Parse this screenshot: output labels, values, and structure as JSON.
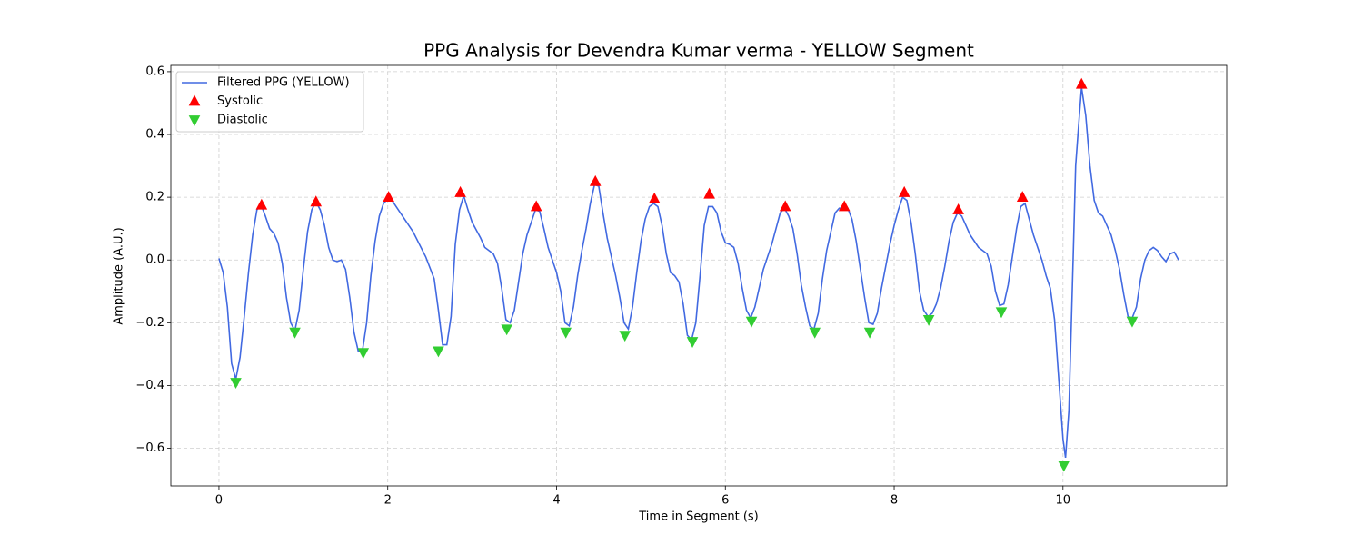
{
  "chart_data": {
    "type": "line",
    "title": "PPG Analysis for Devendra Kumar verma - YELLOW Segment",
    "x_label": "Time in Segment (s)",
    "y_label": "Amplitude (A.U.)",
    "xlim": [
      -0.57,
      11.94
    ],
    "ylim": [
      -0.72,
      0.62
    ],
    "xticks": [
      0,
      2,
      4,
      6,
      8,
      10
    ],
    "yticks": [
      {
        "value": -0.6,
        "label": "−0.6"
      },
      {
        "value": -0.4,
        "label": "−0.4"
      },
      {
        "value": -0.2,
        "label": "−0.2"
      },
      {
        "value": 0,
        "label": "0.0"
      },
      0.2,
      0.4,
      0.6
    ],
    "grid": true,
    "legend": "upper left",
    "series": [
      {
        "name": "Filtered PPG (YELLOW)",
        "type": "line",
        "color": "#4169e1",
        "x": [
          0,
          0.05,
          0.1,
          0.15,
          0.2,
          0.25,
          0.3,
          0.35,
          0.4,
          0.45,
          0.5,
          0.55,
          0.6,
          0.65,
          0.7,
          0.75,
          0.8,
          0.85,
          0.9,
          0.95,
          1.0,
          1.05,
          1.1,
          1.15,
          1.2,
          1.25,
          1.3,
          1.35,
          1.4,
          1.45,
          1.5,
          1.55,
          1.6,
          1.65,
          1.7,
          1.75,
          1.8,
          1.85,
          1.9,
          1.95,
          2.0,
          2.05,
          2.15,
          2.3,
          2.45,
          2.55,
          2.6,
          2.65,
          2.7,
          2.75,
          2.8,
          2.85,
          2.9,
          2.95,
          3.0,
          3.1,
          3.15,
          3.2,
          3.25,
          3.3,
          3.35,
          3.4,
          3.45,
          3.5,
          3.55,
          3.6,
          3.65,
          3.7,
          3.75,
          3.8,
          3.85,
          3.9,
          3.95,
          4.0,
          4.05,
          4.1,
          4.15,
          4.2,
          4.25,
          4.3,
          4.35,
          4.4,
          4.45,
          4.5,
          4.55,
          4.6,
          4.65,
          4.7,
          4.75,
          4.8,
          4.85,
          4.9,
          4.95,
          5.0,
          5.05,
          5.1,
          5.15,
          5.2,
          5.25,
          5.3,
          5.35,
          5.4,
          5.45,
          5.5,
          5.55,
          5.6,
          5.65,
          5.7,
          5.75,
          5.8,
          5.85,
          5.9,
          5.95,
          6.0,
          6.05,
          6.1,
          6.15,
          6.2,
          6.25,
          6.3,
          6.35,
          6.4,
          6.45,
          6.5,
          6.55,
          6.6,
          6.65,
          6.7,
          6.75,
          6.8,
          6.85,
          6.9,
          6.95,
          7.0,
          7.05,
          7.1,
          7.15,
          7.2,
          7.25,
          7.3,
          7.35,
          7.45,
          7.5,
          7.55,
          7.6,
          7.65,
          7.7,
          7.75,
          7.8,
          7.85,
          7.9,
          7.95,
          8.0,
          8.05,
          8.1,
          8.15,
          8.2,
          8.25,
          8.3,
          8.35,
          8.4,
          8.45,
          8.5,
          8.55,
          8.6,
          8.65,
          8.7,
          8.75,
          8.8,
          8.85,
          8.9,
          8.95,
          9.0,
          9.05,
          9.1,
          9.15,
          9.2,
          9.25,
          9.3,
          9.35,
          9.4,
          9.45,
          9.5,
          9.55,
          9.6,
          9.65,
          9.7,
          9.75,
          9.8,
          9.85,
          9.9,
          9.95,
          10.0,
          10.03,
          10.07,
          10.12,
          10.15,
          10.18,
          10.22,
          10.27,
          10.32,
          10.37,
          10.42,
          10.47,
          10.52,
          10.57,
          10.62,
          10.67,
          10.72,
          10.77,
          10.82,
          10.87,
          10.92,
          10.97,
          11.02,
          11.07,
          11.12,
          11.17,
          11.22,
          11.27,
          11.32,
          11.37
        ],
        "values": [
          0.005,
          -0.04,
          -0.15,
          -0.33,
          -0.38,
          -0.31,
          -0.18,
          -0.04,
          0.08,
          0.16,
          0.175,
          0.14,
          0.1,
          0.085,
          0.055,
          -0.01,
          -0.12,
          -0.2,
          -0.225,
          -0.16,
          -0.03,
          0.09,
          0.16,
          0.185,
          0.16,
          0.11,
          0.04,
          0.0,
          -0.005,
          0.0,
          -0.03,
          -0.12,
          -0.23,
          -0.29,
          -0.29,
          -0.2,
          -0.05,
          0.06,
          0.14,
          0.18,
          0.195,
          0.19,
          0.15,
          0.09,
          0.01,
          -0.06,
          -0.16,
          -0.27,
          -0.27,
          -0.18,
          0.05,
          0.16,
          0.205,
          0.16,
          0.12,
          0.07,
          0.04,
          0.03,
          0.02,
          -0.01,
          -0.09,
          -0.19,
          -0.2,
          -0.16,
          -0.07,
          0.02,
          0.08,
          0.12,
          0.16,
          0.155,
          0.1,
          0.04,
          0.0,
          -0.04,
          -0.1,
          -0.2,
          -0.21,
          -0.15,
          -0.05,
          0.03,
          0.1,
          0.18,
          0.24,
          0.235,
          0.15,
          0.07,
          0.01,
          -0.05,
          -0.12,
          -0.2,
          -0.22,
          -0.15,
          -0.04,
          0.06,
          0.13,
          0.17,
          0.18,
          0.17,
          0.11,
          0.02,
          -0.04,
          -0.05,
          -0.07,
          -0.14,
          -0.24,
          -0.255,
          -0.2,
          -0.05,
          0.11,
          0.17,
          0.17,
          0.15,
          0.09,
          0.055,
          0.05,
          0.04,
          -0.01,
          -0.09,
          -0.16,
          -0.185,
          -0.15,
          -0.09,
          -0.03,
          0.01,
          0.05,
          0.1,
          0.15,
          0.165,
          0.14,
          0.1,
          0.02,
          -0.08,
          -0.15,
          -0.21,
          -0.22,
          -0.17,
          -0.06,
          0.03,
          0.09,
          0.15,
          0.165,
          0.165,
          0.13,
          0.06,
          -0.03,
          -0.12,
          -0.2,
          -0.205,
          -0.17,
          -0.09,
          -0.02,
          0.05,
          0.11,
          0.16,
          0.2,
          0.19,
          0.12,
          0.02,
          -0.1,
          -0.16,
          -0.18,
          -0.17,
          -0.14,
          -0.09,
          -0.02,
          0.06,
          0.12,
          0.15,
          0.14,
          0.11,
          0.08,
          0.06,
          0.04,
          0.03,
          0.02,
          -0.02,
          -0.1,
          -0.145,
          -0.14,
          -0.08,
          0.01,
          0.1,
          0.17,
          0.18,
          0.13,
          0.08,
          0.04,
          0.0,
          -0.05,
          -0.09,
          -0.19,
          -0.38,
          -0.57,
          -0.63,
          -0.48,
          0.0,
          0.3,
          0.41,
          0.55,
          0.46,
          0.3,
          0.19,
          0.15,
          0.14,
          0.11,
          0.08,
          0.03,
          -0.03,
          -0.11,
          -0.18,
          -0.185,
          -0.15,
          -0.06,
          0.0,
          0.03,
          0.04,
          0.03,
          0.01,
          -0.005,
          0.02,
          0.025,
          0.0
        ]
      },
      {
        "name": "Systolic",
        "type": "scatter",
        "marker": "triangle-up",
        "color": "#ff0000",
        "x": [
          0.505,
          1.15,
          2.01,
          2.86,
          3.76,
          4.46,
          5.16,
          5.81,
          6.71,
          7.41,
          8.12,
          8.76,
          9.52,
          10.22
        ],
        "values": [
          0.175,
          0.185,
          0.2,
          0.215,
          0.17,
          0.25,
          0.195,
          0.21,
          0.17,
          0.17,
          0.215,
          0.16,
          0.2,
          0.56
        ]
      },
      {
        "name": "Diastolic",
        "type": "scatter",
        "marker": "triangle-down",
        "color": "#32cd32",
        "x": [
          0.2,
          0.9,
          1.71,
          2.6,
          3.41,
          4.11,
          4.81,
          5.61,
          6.31,
          7.06,
          7.71,
          8.41,
          9.27,
          10.01,
          10.82
        ],
        "values": [
          -0.39,
          -0.23,
          -0.295,
          -0.29,
          -0.22,
          -0.23,
          -0.24,
          -0.26,
          -0.195,
          -0.23,
          -0.23,
          -0.19,
          -0.165,
          -0.655,
          -0.195
        ]
      }
    ]
  }
}
